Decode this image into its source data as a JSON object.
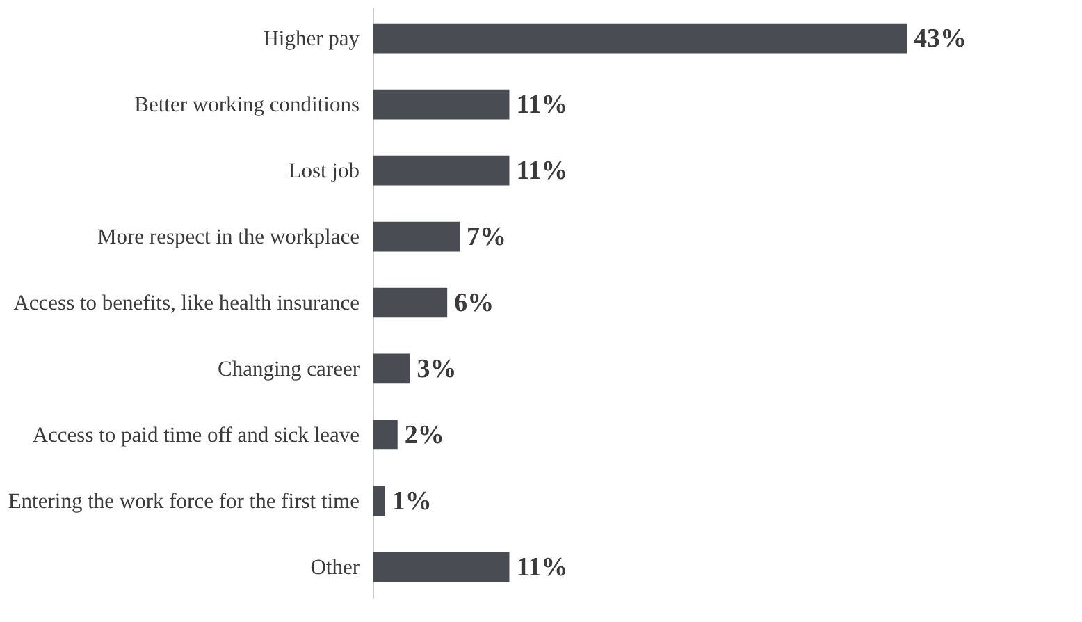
{
  "chart_data": {
    "type": "bar",
    "orientation": "horizontal",
    "categories": [
      "Higher pay",
      "Better working conditions",
      "Lost job",
      "More respect in the workplace",
      "Access to benefits, like health insurance",
      "Changing career",
      "Access to paid time off and sick leave",
      "Entering the work force for the first time",
      "Other"
    ],
    "values": [
      43,
      11,
      11,
      7,
      6,
      3,
      2,
      1,
      11
    ],
    "value_labels": [
      "43%",
      "11%",
      "11%",
      "7%",
      "6%",
      "3%",
      "2%",
      "1%",
      "11%"
    ],
    "color": "#4a4c54",
    "grid": false
  }
}
